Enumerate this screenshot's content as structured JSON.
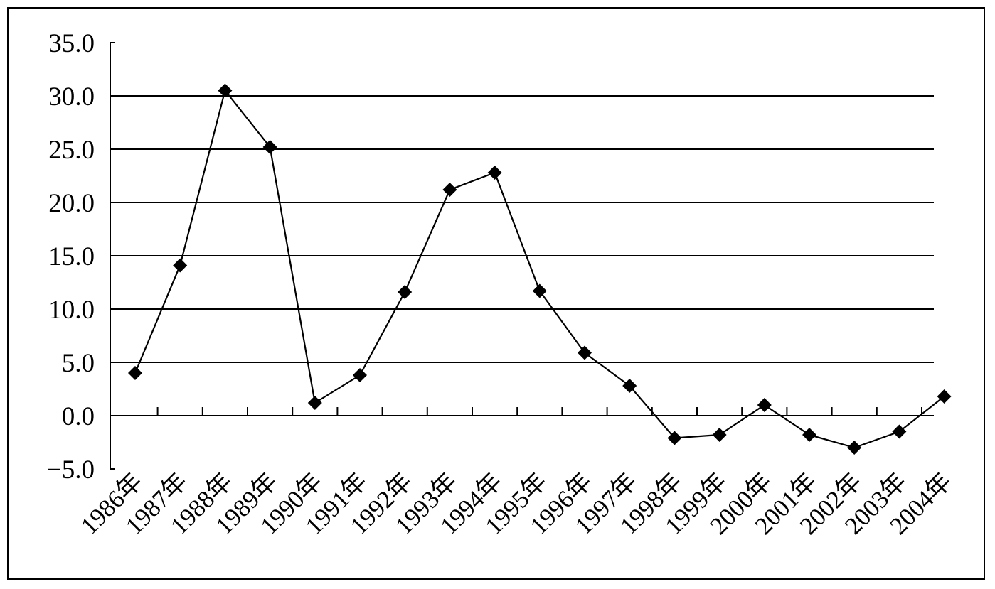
{
  "chart_data": {
    "type": "line",
    "title": "",
    "xlabel": "",
    "ylabel": "",
    "categories": [
      "1986年",
      "1987年",
      "1988年",
      "1989年",
      "1990年",
      "1991年",
      "1992年",
      "1993年",
      "1994年",
      "1995年",
      "1996年",
      "1997年",
      "1998年",
      "1999年",
      "2000年",
      "2001年",
      "2002年",
      "2003年",
      "2004年"
    ],
    "series": [
      {
        "values": [
          4.0,
          14.1,
          30.5,
          25.2,
          1.2,
          3.8,
          11.6,
          21.2,
          22.8,
          11.7,
          5.9,
          2.8,
          -2.1,
          -1.8,
          1.0,
          -1.8,
          -3.0,
          -1.5,
          1.8
        ]
      }
    ],
    "ylim": [
      -5.0,
      35.0
    ],
    "yticks": [
      "35.0",
      "30.0",
      "25.0",
      "20.0",
      "15.0",
      "10.0",
      "5.0",
      "0.0",
      "−5.0"
    ],
    "ytick_values": [
      35,
      30,
      25,
      20,
      15,
      10,
      5,
      0,
      -5
    ],
    "grid": true,
    "legend": "none",
    "colors": {
      "line": "#000000",
      "marker": "#000000",
      "grid": "#000000"
    }
  }
}
